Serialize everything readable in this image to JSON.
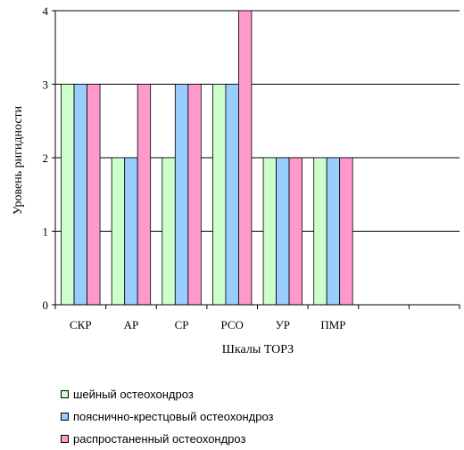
{
  "chart_data": {
    "type": "bar",
    "categories": [
      "СКР",
      "АР",
      "СР",
      "РСО",
      "УР",
      "ПМР",
      "",
      ""
    ],
    "series": [
      {
        "name": "шейный остеохондроз",
        "values": [
          3,
          2,
          2,
          3,
          2,
          2,
          null,
          null
        ],
        "color": "#ccffcc"
      },
      {
        "name": "пояснично-крестцовый остеохондроз",
        "values": [
          3,
          2,
          3,
          3,
          2,
          2,
          null,
          null
        ],
        "color": "#99ccff"
      },
      {
        "name": "распростаненный остеохондроз",
        "values": [
          3,
          3,
          3,
          4,
          2,
          2,
          null,
          null
        ],
        "color": "#ff99cc"
      }
    ],
    "xlabel": "Шкалы ТОРЗ",
    "ylabel": "Уровень ригидности",
    "ylim": [
      0,
      4
    ],
    "yticks": [
      0,
      1,
      2,
      3,
      4
    ],
    "grid": true,
    "legend_position": "bottom-left"
  }
}
